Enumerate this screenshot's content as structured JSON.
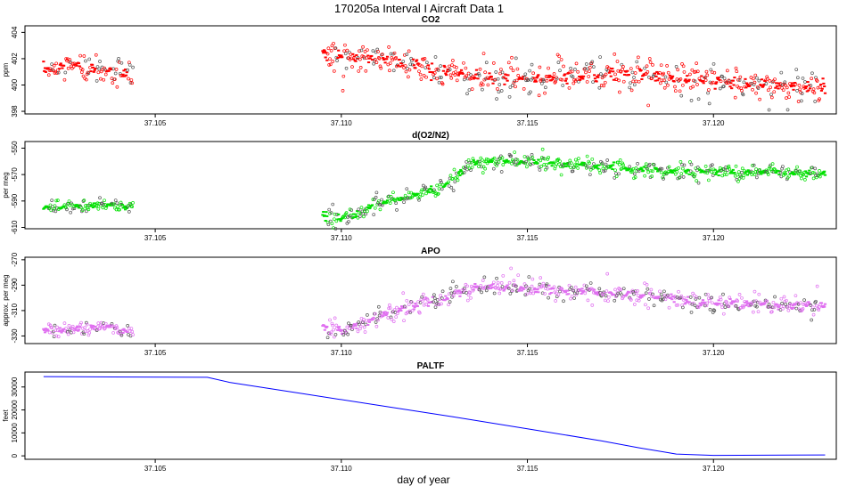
{
  "figure": {
    "title": "170205a   Interval I Aircraft Data 1",
    "xlabel": "day of year"
  },
  "chart_data": [
    {
      "type": "scatter",
      "title": "CO2",
      "ylabel": "ppm",
      "color": "#ff0000",
      "xlim": [
        37.1015,
        37.1233
      ],
      "ylim": [
        397.8,
        404.5
      ],
      "xticks": [
        "37.105",
        "37.110",
        "37.115",
        "37.120"
      ],
      "xtick_values": [
        37.105,
        37.11,
        37.115,
        37.12
      ],
      "yticks": [
        "398",
        "400",
        "402",
        "404"
      ],
      "ytick_values": [
        398,
        400,
        402,
        404
      ],
      "segments": [
        {
          "x_start": 37.102,
          "x_end": 37.1044,
          "n": 120,
          "trend": [
            [
              37.102,
              401.2
            ],
            [
              37.1028,
              401.5
            ],
            [
              37.1036,
              401.2
            ],
            [
              37.1044,
              400.8
            ]
          ],
          "noise": 0.6
        },
        {
          "x_start": 37.1095,
          "x_end": 37.123,
          "n": 700,
          "trend": [
            [
              37.1095,
              402.3
            ],
            [
              37.111,
              402.0
            ],
            [
              37.112,
              401.6
            ],
            [
              37.1135,
              400.6
            ],
            [
              37.115,
              400.5
            ],
            [
              37.1165,
              400.7
            ],
            [
              37.118,
              400.9
            ],
            [
              37.1195,
              400.3
            ],
            [
              37.121,
              400.0
            ],
            [
              37.123,
              399.8
            ]
          ],
          "noise": 0.65
        }
      ]
    },
    {
      "type": "scatter",
      "title": "d(O2/N2)",
      "ylabel": "per meg",
      "color": "#00e000",
      "xlim": [
        37.1015,
        37.1233
      ],
      "ylim": [
        -611,
        -545
      ],
      "xticks": [
        "37.105",
        "37.110",
        "37.115",
        "37.120"
      ],
      "xtick_values": [
        37.105,
        37.11,
        37.115,
        37.12
      ],
      "yticks": [
        "-610",
        "-590",
        "-570",
        "-550"
      ],
      "ytick_values": [
        -610,
        -590,
        -570,
        -550
      ],
      "segments": [
        {
          "x_start": 37.102,
          "x_end": 37.1044,
          "n": 120,
          "trend": [
            [
              37.102,
              -595
            ],
            [
              37.103,
              -594
            ],
            [
              37.1038,
              -592
            ],
            [
              37.1044,
              -596
            ]
          ],
          "noise": 2.5
        },
        {
          "x_start": 37.1095,
          "x_end": 37.123,
          "n": 700,
          "trend": [
            [
              37.1095,
              -600
            ],
            [
              37.11,
              -604
            ],
            [
              37.111,
              -593
            ],
            [
              37.112,
              -585
            ],
            [
              37.1128,
              -578
            ],
            [
              37.1135,
              -561
            ],
            [
              37.115,
              -560
            ],
            [
              37.1165,
              -563
            ],
            [
              37.118,
              -566
            ],
            [
              37.1195,
              -568
            ],
            [
              37.121,
              -568
            ],
            [
              37.123,
              -569
            ]
          ],
          "noise": 3.2
        }
      ]
    },
    {
      "type": "scatter",
      "title": "APO",
      "ylabel": "approx. per meg",
      "color": "#e070f0",
      "xlim": [
        37.1015,
        37.1233
      ],
      "ylim": [
        -336,
        -268
      ],
      "xticks": [
        "37.105",
        "37.110",
        "37.115",
        "37.120"
      ],
      "xtick_values": [
        37.105,
        37.11,
        37.115,
        37.12
      ],
      "yticks": [
        "-330",
        "-310",
        "-290",
        "-270"
      ],
      "ytick_values": [
        -330,
        -310,
        -290,
        -270
      ],
      "segments": [
        {
          "x_start": 37.102,
          "x_end": 37.1044,
          "n": 120,
          "trend": [
            [
              37.102,
              -326
            ],
            [
              37.103,
              -324
            ],
            [
              37.1038,
              -322
            ],
            [
              37.1044,
              -328
            ]
          ],
          "noise": 3.0
        },
        {
          "x_start": 37.1095,
          "x_end": 37.123,
          "n": 700,
          "trend": [
            [
              37.1095,
              -322
            ],
            [
              37.11,
              -326
            ],
            [
              37.111,
              -315
            ],
            [
              37.112,
              -306
            ],
            [
              37.1128,
              -300
            ],
            [
              37.1135,
              -291
            ],
            [
              37.115,
              -293
            ],
            [
              37.1165,
              -295
            ],
            [
              37.118,
              -298
            ],
            [
              37.1195,
              -303
            ],
            [
              37.121,
              -305
            ],
            [
              37.123,
              -306
            ]
          ],
          "noise": 4.0
        }
      ]
    },
    {
      "type": "line",
      "title": "PALTF",
      "ylabel": "feet",
      "color": "#0000ff",
      "xlim": [
        37.1015,
        37.1233
      ],
      "ylim": [
        -1500,
        36500
      ],
      "xticks": [
        "37.105",
        "37.110",
        "37.115",
        "37.120"
      ],
      "xtick_values": [
        37.105,
        37.11,
        37.115,
        37.12
      ],
      "yticks": [
        "0",
        "10000",
        "20000",
        "30000"
      ],
      "ytick_values": [
        0,
        10000,
        20000,
        30000
      ],
      "x": [
        37.102,
        37.1064,
        37.107,
        37.109,
        37.111,
        37.113,
        37.115,
        37.117,
        37.118,
        37.119,
        37.12,
        37.123
      ],
      "y": [
        34500,
        34200,
        32000,
        27000,
        22000,
        17000,
        11800,
        6500,
        3500,
        800,
        200,
        400
      ]
    }
  ]
}
